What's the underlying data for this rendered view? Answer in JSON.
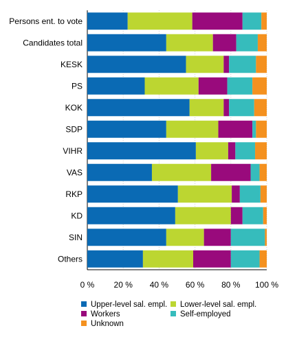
{
  "chart_data": {
    "type": "bar",
    "orientation": "horizontal",
    "stacked": true,
    "title": "",
    "xlabel": "",
    "ylabel": "",
    "xlim": [
      0,
      100
    ],
    "x_ticks": [
      "0 %",
      "20 %",
      "40 %",
      "60 %",
      "80 %",
      "100 %"
    ],
    "grid": true,
    "legend_position": "bottom",
    "categories": [
      "Persons ent. to vote",
      "Candidates total",
      "KESK",
      "PS",
      "KOK",
      "SDP",
      "VIHR",
      "VAS",
      "RKP",
      "KD",
      "SIN",
      "Others"
    ],
    "series": [
      {
        "name": "Upper-level sal. empl.",
        "color": "#0a6ab4",
        "values": [
          22.5,
          44,
          55,
          32,
          57,
          44,
          60.5,
          36,
          50.5,
          49,
          44,
          31
        ]
      },
      {
        "name": "Lower-level sal. empl.",
        "color": "#bcd631",
        "values": [
          36,
          26,
          21,
          30,
          19,
          29,
          18,
          33,
          30,
          31,
          21,
          28
        ]
      },
      {
        "name": "Workers",
        "color": "#990a7c",
        "values": [
          28,
          13,
          3,
          16,
          3,
          19,
          4,
          22,
          4.5,
          6.5,
          15,
          21
        ]
      },
      {
        "name": "Self-employed",
        "color": "#36bcbc",
        "values": [
          10.5,
          12,
          15,
          14,
          14,
          2,
          11,
          5,
          11.5,
          11.5,
          19,
          16
        ]
      },
      {
        "name": "Unknown",
        "color": "#f4911f",
        "values": [
          3,
          5,
          6,
          8,
          7,
          6,
          6.5,
          4,
          3.5,
          2,
          1,
          4
        ]
      }
    ]
  }
}
